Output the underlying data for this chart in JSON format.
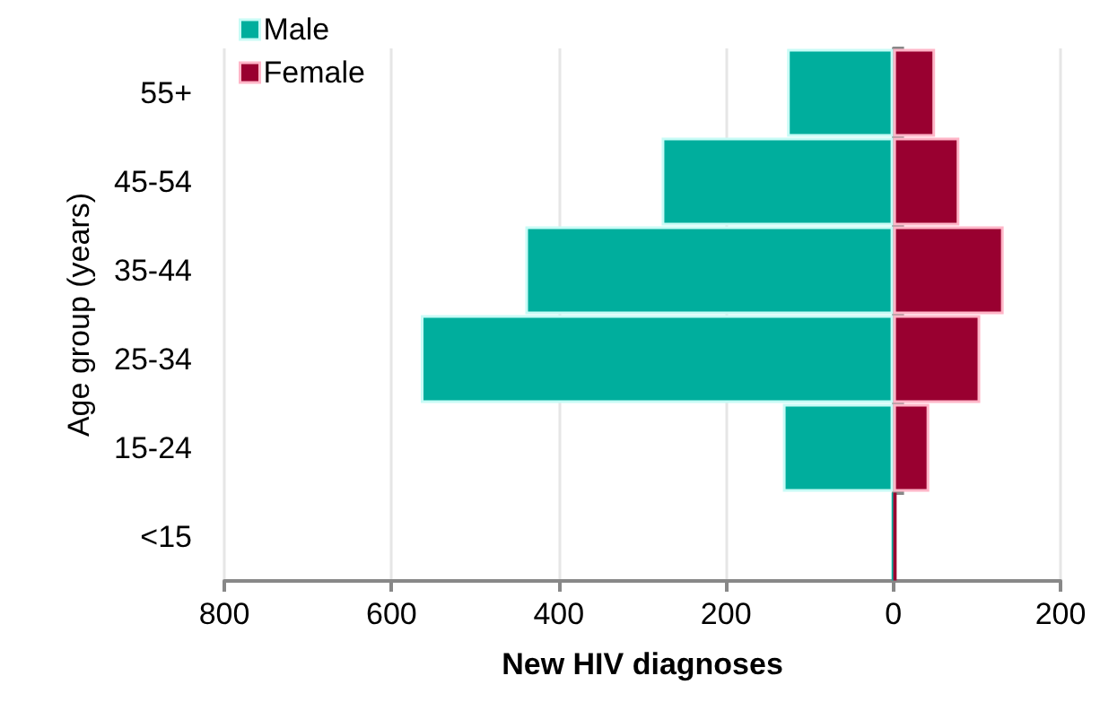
{
  "chart_data": {
    "type": "bar",
    "orientation": "horizontal",
    "xlabel": "New HIV diagnoses",
    "ylabel": "Age group (years)",
    "categories": [
      "55+",
      "45-54",
      "35-44",
      "25-34",
      "15-24",
      "<15"
    ],
    "series": [
      {
        "name": "Male",
        "color": "#00ae9d",
        "values": [
          -127,
          -277,
          -440,
          -565,
          -132,
          -2
        ]
      },
      {
        "name": "Female",
        "color": "#990030",
        "values": [
          50,
          79,
          132,
          104,
          43,
          4
        ]
      }
    ],
    "xlim": [
      -800,
      200
    ],
    "xticks": [
      {
        "value": -800,
        "label": "800"
      },
      {
        "value": -600,
        "label": "600"
      },
      {
        "value": -400,
        "label": "400"
      },
      {
        "value": -200,
        "label": "200"
      },
      0,
      200
    ],
    "grid": "x",
    "legend": "top left",
    "stacked": true
  }
}
